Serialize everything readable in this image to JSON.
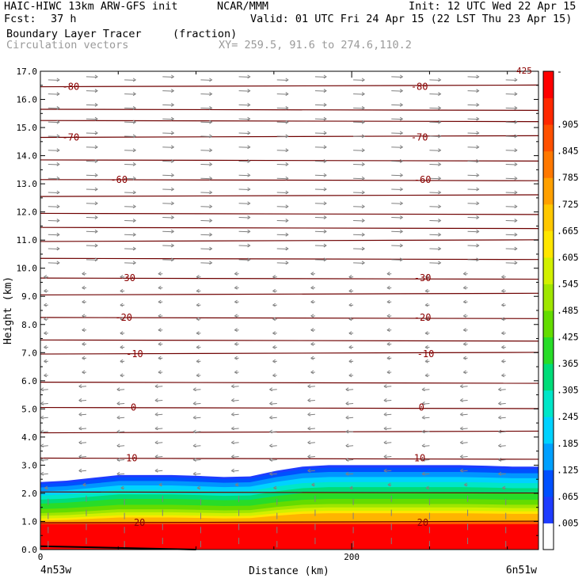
{
  "header": {
    "model": "HAIC-HIWC 13km ARW-GFS init",
    "org": "NCAR/MMM",
    "init": "Init: 12 UTC Wed 22 Apr 15",
    "fcst_label": "Fcst:",
    "fcst_value": "37 h",
    "valid": "Valid: 01 UTC Fri 24 Apr 15 (22 LST Thu 23 Apr 15)",
    "field": "Boundary Layer Tracer",
    "units": "(fraction)",
    "vectors": "Circulation vectors",
    "xy": "XY= 259.5, 91.6 to 274.6,110.2"
  },
  "chart_data": {
    "type": "heatmap",
    "xlabel": "Distance (km)",
    "ylabel": "Height (km)",
    "xlim": [
      0,
      320
    ],
    "ylim": [
      0,
      17
    ],
    "x_ticks": [
      "0",
      "200"
    ],
    "y_ticks": [
      "0.0",
      "1.0",
      "2.0",
      "3.0",
      "4.0",
      "5.0",
      "6.0",
      "7.0",
      "8.0",
      "9.0",
      "10.0",
      "11.0",
      "12.0",
      "13.0",
      "14.0",
      "15.0",
      "16.0",
      "17.0"
    ],
    "x_end_labels": {
      "left": "4n53w",
      "right": "6n51w"
    },
    "colorbar": {
      "labels": [
        ".005",
        ".065",
        ".125",
        ".185",
        ".245",
        ".305",
        ".365",
        ".425",
        ".485",
        ".545",
        ".605",
        ".665",
        ".725",
        ".785",
        ".845",
        ".905"
      ],
      "top_label": "-",
      "colors": [
        "#ffffff",
        "#1e3cff",
        "#0050ff",
        "#00a0ff",
        "#00d2ff",
        "#00e6c8",
        "#00dc78",
        "#28dc28",
        "#64dc00",
        "#a0e600",
        "#d2f000",
        "#ffe600",
        "#ffc800",
        "#ffa000",
        "#ff7800",
        "#ff5000",
        "#ff2800",
        "#ff0000"
      ]
    },
    "temperature_contours": [
      {
        "label": "-80",
        "z": 16.45
      },
      {
        "label": "-70",
        "z": 14.65
      },
      {
        "label": "-60",
        "z": 13.15
      },
      {
        "label": "-30",
        "z": 9.65
      },
      {
        "label": "-20",
        "z": 8.25
      },
      {
        "label": "-10",
        "z": 6.95
      },
      {
        "label": "0",
        "z": 5.05
      },
      {
        "label": "10",
        "z": 3.25
      },
      {
        "label": "20",
        "z": 0.95
      }
    ],
    "theta_lines_z": [
      0.95,
      2.05,
      3.25,
      4.15,
      5.05,
      5.95,
      6.95,
      7.45,
      8.25,
      9.05,
      9.65,
      10.35,
      10.95,
      11.45,
      11.95,
      12.55,
      13.15,
      13.85,
      14.65,
      15.25,
      15.65,
      16.45
    ],
    "tracer_top_km": [
      2.4,
      2.45,
      2.55,
      2.65,
      2.65,
      2.65,
      2.62,
      2.58,
      2.6,
      2.8,
      2.95,
      3.0,
      3.0,
      3.0,
      3.0,
      3.0,
      3.0,
      2.98,
      2.95,
      2.95
    ],
    "highlights": {
      "annotation_top": "425"
    }
  }
}
